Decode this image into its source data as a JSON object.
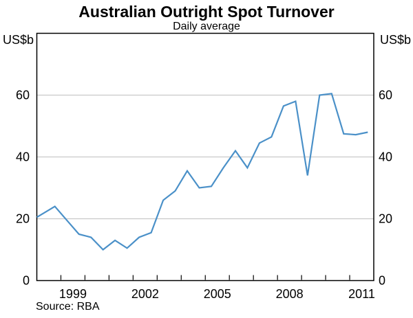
{
  "header": {
    "title": "Australian Outright Spot Turnover",
    "subtitle": "Daily average"
  },
  "axes": {
    "left_unit": "US$b",
    "right_unit": "US$b",
    "y_ticks": [
      0,
      20,
      40,
      60
    ],
    "x_labels": [
      1999,
      2002,
      2005,
      2008,
      2011
    ]
  },
  "source": "Source: RBA",
  "colors": {
    "line": "#4A90C8",
    "gridline": "#C9C9C9",
    "border": "#000000",
    "text": "#000000",
    "background": "#FFFFFF"
  },
  "chart_data": {
    "type": "line",
    "title": "Australian Outright Spot Turnover",
    "subtitle": "Daily average",
    "ylabel": "US$b",
    "ylabel_right": "US$b",
    "ylim": [
      0,
      80
    ],
    "xlim": [
      1998,
      2012
    ],
    "grid": "horizontal",
    "gridlines_y": [
      20,
      40,
      60
    ],
    "x_tick_years": [
      1999,
      2000,
      2001,
      2002,
      2003,
      2004,
      2005,
      2006,
      2007,
      2008,
      2009,
      2010,
      2011
    ],
    "x_tick_label_years": [
      1999,
      2002,
      2005,
      2008,
      2011
    ],
    "legend_position": "none",
    "source": "Source: RBA",
    "series": [
      {
        "name": "Australian outright spot turnover, daily average (US$b)",
        "x": [
          1998.0,
          1998.75,
          1999.25,
          1999.75,
          2000.25,
          2000.75,
          2001.25,
          2001.75,
          2002.25,
          2002.75,
          2003.25,
          2003.75,
          2004.25,
          2004.75,
          2005.25,
          2005.75,
          2006.25,
          2006.75,
          2007.25,
          2007.75,
          2008.25,
          2008.75,
          2009.25,
          2009.75,
          2010.25,
          2010.75,
          2011.25,
          2011.75
        ],
        "values": [
          20.5,
          24,
          19.5,
          15,
          14,
          10,
          13,
          10.5,
          14,
          15.5,
          26,
          29,
          35.5,
          30,
          30.5,
          36.5,
          42,
          36.5,
          44.5,
          46.5,
          56.5,
          58,
          34,
          60,
          60.5,
          47.5,
          47.2,
          48
        ]
      }
    ]
  }
}
